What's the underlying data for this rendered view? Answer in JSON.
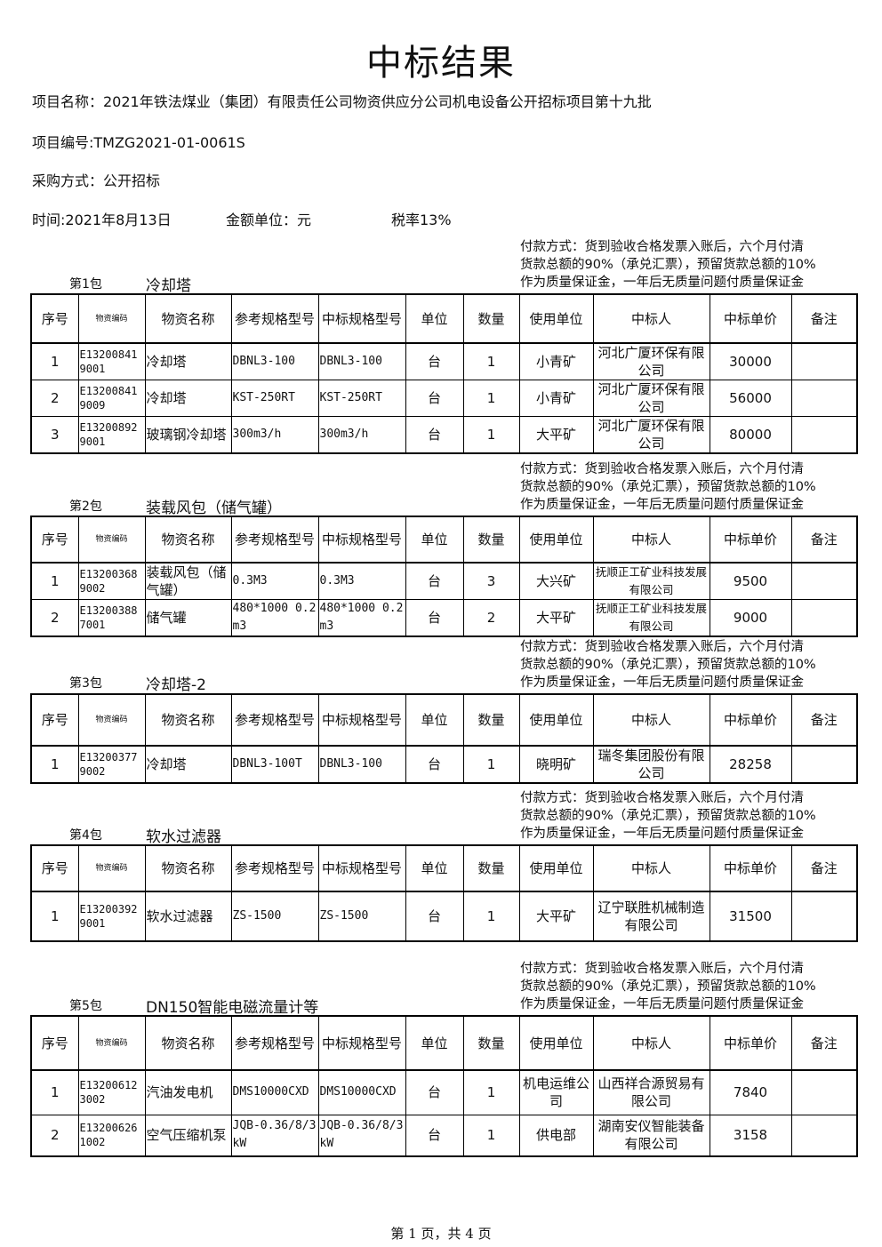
{
  "title": "中标结果",
  "project_name": "项目名称：2021年铁法煤业（集团）有限责任公司物资供应分公司机电设备公开招标项目第十九批",
  "project_no": "项目编号:TMZG2021-01-0061S",
  "purchase_method": "采购方式：公开招标",
  "time": "时间:2021年8月13日",
  "currency": "金额单位：元",
  "tax": "税率13%",
  "payment": [
    "付款方式：货到验收合格发票入账后，六个月付清",
    "货款总额的90%（承兑汇票），预留货款总额的10%",
    "作为质量保证金，一年后无质量问题付质量保证金"
  ],
  "headers": [
    "序号",
    "物资编码",
    "物资名称",
    "参考规格型号",
    "中标规格型号",
    "单位",
    "数量",
    "使用单位",
    "中标人",
    "中标单价",
    "备注"
  ],
  "packages": [
    {
      "label": "第1包",
      "name": "冷却塔",
      "rows": [
        [
          "1",
          "E132008419001",
          "冷却塔",
          "DBNL3-100",
          "DBNL3-100",
          "台",
          "1",
          "小青矿",
          "河北广厦环保有限公司",
          "30000",
          ""
        ],
        [
          "2",
          "E132008419009",
          "冷却塔",
          "KST-250RT",
          "KST-250RT",
          "台",
          "1",
          "小青矿",
          "河北广厦环保有限公司",
          "56000",
          ""
        ],
        [
          "3",
          "E132008929001",
          "玻璃钢冷却塔",
          "300m3/h",
          "300m3/h",
          "台",
          "1",
          "大平矿",
          "河北广厦环保有限公司",
          "80000",
          ""
        ]
      ]
    },
    {
      "label": "第2包",
      "name": "装载风包（储气罐）",
      "rows": [
        [
          "1",
          "E132003689002",
          "装载风包（储气罐）",
          "0.3M3",
          "0.3M3",
          "台",
          "3",
          "大兴矿",
          "抚顺正工矿业科技发展有限公司",
          "9500",
          ""
        ],
        [
          "2",
          "E132003887001",
          "储气罐",
          "480*1000 0.2m3",
          "480*1000 0.2m3",
          "台",
          "2",
          "大平矿",
          "抚顺正工矿业科技发展有限公司",
          "9000",
          ""
        ]
      ]
    },
    {
      "label": "第3包",
      "name": "冷却塔-2",
      "rows": [
        [
          "1",
          "E132003779002",
          "冷却塔",
          "DBNL3-100T",
          "DBNL3-100",
          "台",
          "1",
          "晓明矿",
          "瑞冬集团股份有限公司",
          "28258",
          ""
        ]
      ]
    },
    {
      "label": "第4包",
      "name": "软水过滤器",
      "rows": [
        [
          "1",
          "E132003929001",
          "软水过滤器",
          "ZS-1500",
          "ZS-1500",
          "台",
          "1",
          "大平矿",
          "辽宁联胜机械制造有限公司",
          "31500",
          ""
        ]
      ]
    },
    {
      "label": "第5包",
      "name": "DN150智能电磁流量计等",
      "rows": [
        [
          "1",
          "E132006123002",
          "汽油发电机",
          "DMS10000CXD",
          "DMS10000CXD",
          "台",
          "1",
          "机电运维公司",
          "山西祥合源贸易有限公司",
          "7840",
          ""
        ],
        [
          "2",
          "E132006261002",
          "空气压缩机泵",
          "JQB-0.36/8/3kW",
          "JQB-0.36/8/3kW",
          "台",
          "1",
          "供电部",
          "湖南安仪智能装备有限公司",
          "3158",
          ""
        ]
      ]
    }
  ],
  "footer": "第 1 页，共 4 页"
}
